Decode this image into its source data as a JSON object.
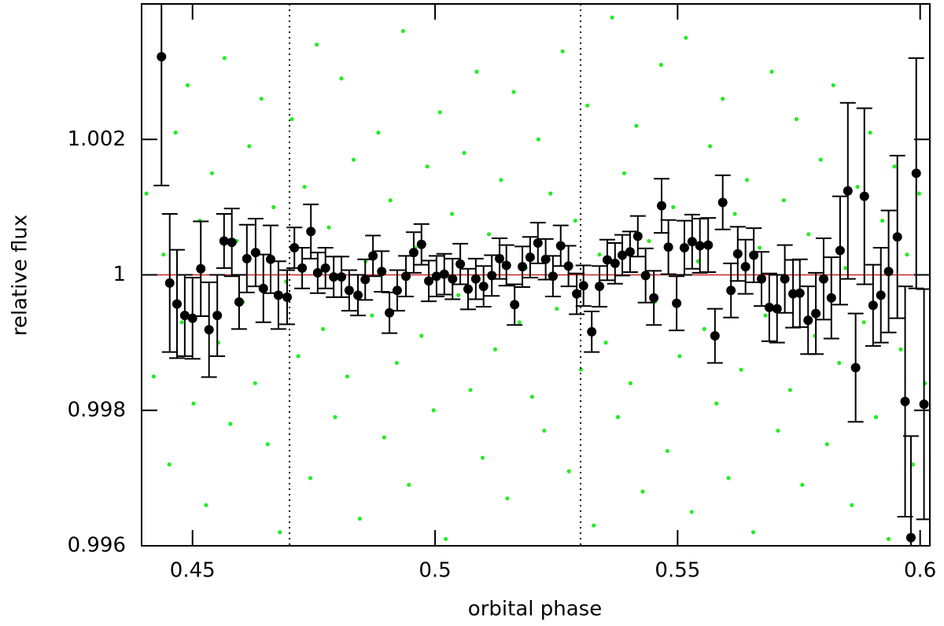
{
  "chart_data": {
    "type": "scatter",
    "xlabel": "orbital phase",
    "ylabel": "relative flux",
    "xlim": [
      0.4395,
      0.602
    ],
    "ylim": [
      0.996,
      1.004
    ],
    "xticks": [
      0.45,
      0.5,
      0.55,
      0.6
    ],
    "yticks": [
      0.996,
      0.998,
      1,
      1.002
    ],
    "hline": 1,
    "hline_color": "#cc2222",
    "vlines": [
      0.47,
      0.53
    ],
    "series": [
      {
        "color": "#22ee22",
        "x": [
          0.4405,
          0.442,
          0.444,
          0.4452,
          0.4465,
          0.4478,
          0.449,
          0.4502,
          0.4515,
          0.4528,
          0.454,
          0.4553,
          0.4566,
          0.4578,
          0.4591,
          0.4604,
          0.4617,
          0.4629,
          0.4642,
          0.4655,
          0.4667,
          0.468,
          0.4693,
          0.4705,
          0.4718,
          0.4731,
          0.4743,
          0.4756,
          0.4769,
          0.4781,
          0.4794,
          0.4807,
          0.4819,
          0.4832,
          0.4845,
          0.4857,
          0.487,
          0.4883,
          0.4895,
          0.4908,
          0.4921,
          0.4934,
          0.4946,
          0.4959,
          0.4972,
          0.4984,
          0.4997,
          0.501,
          0.5022,
          0.5035,
          0.5048,
          0.506,
          0.5073,
          0.5086,
          0.5098,
          0.5111,
          0.5124,
          0.5136,
          0.5149,
          0.5162,
          0.5174,
          0.5187,
          0.52,
          0.5213,
          0.5225,
          0.5238,
          0.5251,
          0.5263,
          0.5276,
          0.5289,
          0.5301,
          0.5314,
          0.5327,
          0.5339,
          0.5352,
          0.5365,
          0.5377,
          0.539,
          0.5403,
          0.5415,
          0.5428,
          0.5441,
          0.5453,
          0.5466,
          0.5479,
          0.5491,
          0.5504,
          0.5517,
          0.5529,
          0.5542,
          0.5555,
          0.5567,
          0.558,
          0.5593,
          0.5605,
          0.5618,
          0.5631,
          0.5643,
          0.5656,
          0.5669,
          0.5681,
          0.5694,
          0.5707,
          0.5719,
          0.5732,
          0.5745,
          0.5757,
          0.577,
          0.5783,
          0.5795,
          0.5808,
          0.5821,
          0.5833,
          0.5846,
          0.5859,
          0.5871,
          0.5884,
          0.5897,
          0.5909,
          0.5922,
          0.5935,
          0.5947,
          0.596,
          0.5973,
          0.5985,
          0.5998,
          0.601
        ],
        "values": [
          1.0012,
          0.9985,
          1.0003,
          0.9972,
          1.0021,
          0.9993,
          1.0028,
          0.9981,
          1.0008,
          0.9966,
          1.0015,
          0.999,
          1.0032,
          0.9978,
          1.0005,
          0.9996,
          1.0019,
          0.9984,
          1.0026,
          0.9975,
          1.001,
          0.9962,
          0.9999,
          1.0023,
          0.9988,
          1.0013,
          0.997,
          1.0034,
          0.9992,
          1.0007,
          0.9979,
          1.0029,
          0.9985,
          1.0017,
          0.9964,
          1.0002,
          0.9994,
          1.0021,
          0.9976,
          1.0011,
          0.9987,
          1.0036,
          0.9969,
          1.0004,
          0.9991,
          1.0016,
          0.998,
          1.0024,
          0.9961,
          1.0009,
          0.9997,
          1.0018,
          0.9983,
          1.003,
          0.9973,
          1.0006,
          0.9989,
          1.0014,
          0.9967,
          1.0027,
          0.9993,
          1.0001,
          0.9982,
          1.002,
          0.9977,
          1.0012,
          0.9995,
          1.0033,
          0.9971,
          1.0008,
          0.9986,
          1.0025,
          0.9963,
          1.0003,
          0.999,
          1.0038,
          0.9979,
          1.0015,
          0.9984,
          1.0022,
          0.9968,
          1.0005,
          0.9996,
          1.0031,
          0.9974,
          1.001,
          0.9988,
          1.0035,
          0.9965,
          1.0002,
          0.9992,
          1.0019,
          0.9981,
          1.0026,
          0.997,
          1.0009,
          0.9986,
          1.0014,
          0.9962,
          1.0004,
          0.9994,
          1.003,
          0.9977,
          1.0011,
          0.9983,
          1.0023,
          0.9969,
          1.0006,
          0.9991,
          1.0017,
          0.9975,
          1.0028,
          0.9987,
          1.0001,
          0.9966,
          1.0013,
          0.9993,
          1.0021,
          0.9979,
          1.0008,
          0.9961,
          1.0016,
          0.9989,
          1.0003,
          0.9972,
          1.0012,
          0.9984
        ]
      },
      {
        "color": "#000000",
        "x": [
          0.4436,
          0.4453,
          0.4468,
          0.4484,
          0.45,
          0.4517,
          0.4534,
          0.4551,
          0.4565,
          0.4581,
          0.4596,
          0.4612,
          0.463,
          0.4646,
          0.4661,
          0.4677,
          0.4695,
          0.471,
          0.4726,
          0.4744,
          0.4758,
          0.4774,
          0.4791,
          0.4807,
          0.4823,
          0.4841,
          0.4856,
          0.4872,
          0.489,
          0.4906,
          0.4922,
          0.494,
          0.4956,
          0.4972,
          0.4987,
          0.5003,
          0.5019,
          0.5036,
          0.5052,
          0.5068,
          0.5084,
          0.51,
          0.5117,
          0.5133,
          0.5147,
          0.5164,
          0.518,
          0.5196,
          0.5212,
          0.5228,
          0.5243,
          0.5259,
          0.5275,
          0.5292,
          0.5306,
          0.5323,
          0.5339,
          0.5355,
          0.5371,
          0.5386,
          0.5402,
          0.5418,
          0.5434,
          0.5451,
          0.5467,
          0.5481,
          0.5498,
          0.5514,
          0.553,
          0.5546,
          0.5563,
          0.5577,
          0.5593,
          0.561,
          0.5624,
          0.564,
          0.5657,
          0.5673,
          0.5689,
          0.5705,
          0.5721,
          0.5738,
          0.5752,
          0.5769,
          0.5785,
          0.5801,
          0.5817,
          0.5835,
          0.5851,
          0.5867,
          0.5885,
          0.5903,
          0.5919,
          0.5935,
          0.5953,
          0.5969,
          0.5981,
          0.5992,
          0.6008
        ],
        "values": [
          1.00322,
          0.99988,
          0.99957,
          0.9994,
          0.99936,
          1.00009,
          0.99919,
          0.9994,
          1.0005,
          1.00048,
          0.9996,
          1.00024,
          1.00033,
          0.9998,
          1.00023,
          0.9997,
          0.99967,
          1.0004,
          1.0001,
          1.00064,
          1.00003,
          1.0001,
          0.99997,
          0.99997,
          0.99977,
          0.9997,
          0.99993,
          1.00028,
          1.00005,
          0.99944,
          0.99977,
          0.99998,
          1.00033,
          1.00045,
          0.99991,
          0.99998,
          1.00001,
          0.99994,
          1.00016,
          0.99979,
          0.99994,
          0.99983,
          0.99999,
          1.00024,
          1.00014,
          0.99956,
          1.00012,
          1.00026,
          1.00047,
          1.00023,
          0.99998,
          1.00043,
          1.00013,
          0.99972,
          0.99984,
          0.99916,
          0.99983,
          1.00022,
          1.00017,
          1.00029,
          1.00034,
          1.00057,
          0.99999,
          0.99966,
          1.00102,
          1.00041,
          0.99958,
          1.0004,
          1.00049,
          1.00043,
          1.00044,
          0.9991,
          1.00107,
          0.99977,
          1.00031,
          1.00012,
          1.00029,
          0.99994,
          0.99952,
          0.9995,
          0.99994,
          0.99972,
          0.99973,
          0.99933,
          0.99943,
          0.99994,
          0.99966,
          1.00036,
          1.00124,
          0.99863,
          1.00116,
          0.99955,
          0.9997,
          1.00005,
          1.00056,
          0.99813,
          0.99612,
          1.0015,
          0.99809
        ],
        "errors": [
          0.0019,
          0.00102,
          0.0008,
          0.0006,
          0.0006,
          0.0007,
          0.0007,
          0.0006,
          0.0004,
          0.0005,
          0.0004,
          0.0005,
          0.0005,
          0.0005,
          0.0005,
          0.0005,
          0.0004,
          0.0003,
          0.0003,
          0.0004,
          0.0003,
          0.0003,
          0.0003,
          0.0003,
          0.0003,
          0.0003,
          0.0003,
          0.0003,
          0.0003,
          0.0003,
          0.0003,
          0.0003,
          0.0003,
          0.0003,
          0.0003,
          0.0003,
          0.0003,
          0.0003,
          0.0003,
          0.0003,
          0.0003,
          0.0003,
          0.0003,
          0.0003,
          0.0003,
          0.0003,
          0.0003,
          0.0003,
          0.0003,
          0.0003,
          0.0003,
          0.0003,
          0.0003,
          0.0003,
          0.0003,
          0.0003,
          0.0003,
          0.0003,
          0.0003,
          0.0003,
          0.0003,
          0.0003,
          0.0004,
          0.0004,
          0.0004,
          0.0004,
          0.0004,
          0.0004,
          0.0004,
          0.0004,
          0.0004,
          0.0004,
          0.0004,
          0.0004,
          0.0004,
          0.0004,
          0.0004,
          0.0004,
          0.0005,
          0.0005,
          0.0005,
          0.0005,
          0.0005,
          0.0005,
          0.0006,
          0.0006,
          0.0006,
          0.0008,
          0.0013,
          0.0008,
          0.0013,
          0.0006,
          0.0007,
          0.0009,
          0.0012,
          0.0017,
          0.0015,
          0.0017,
          0.0017
        ]
      }
    ]
  }
}
